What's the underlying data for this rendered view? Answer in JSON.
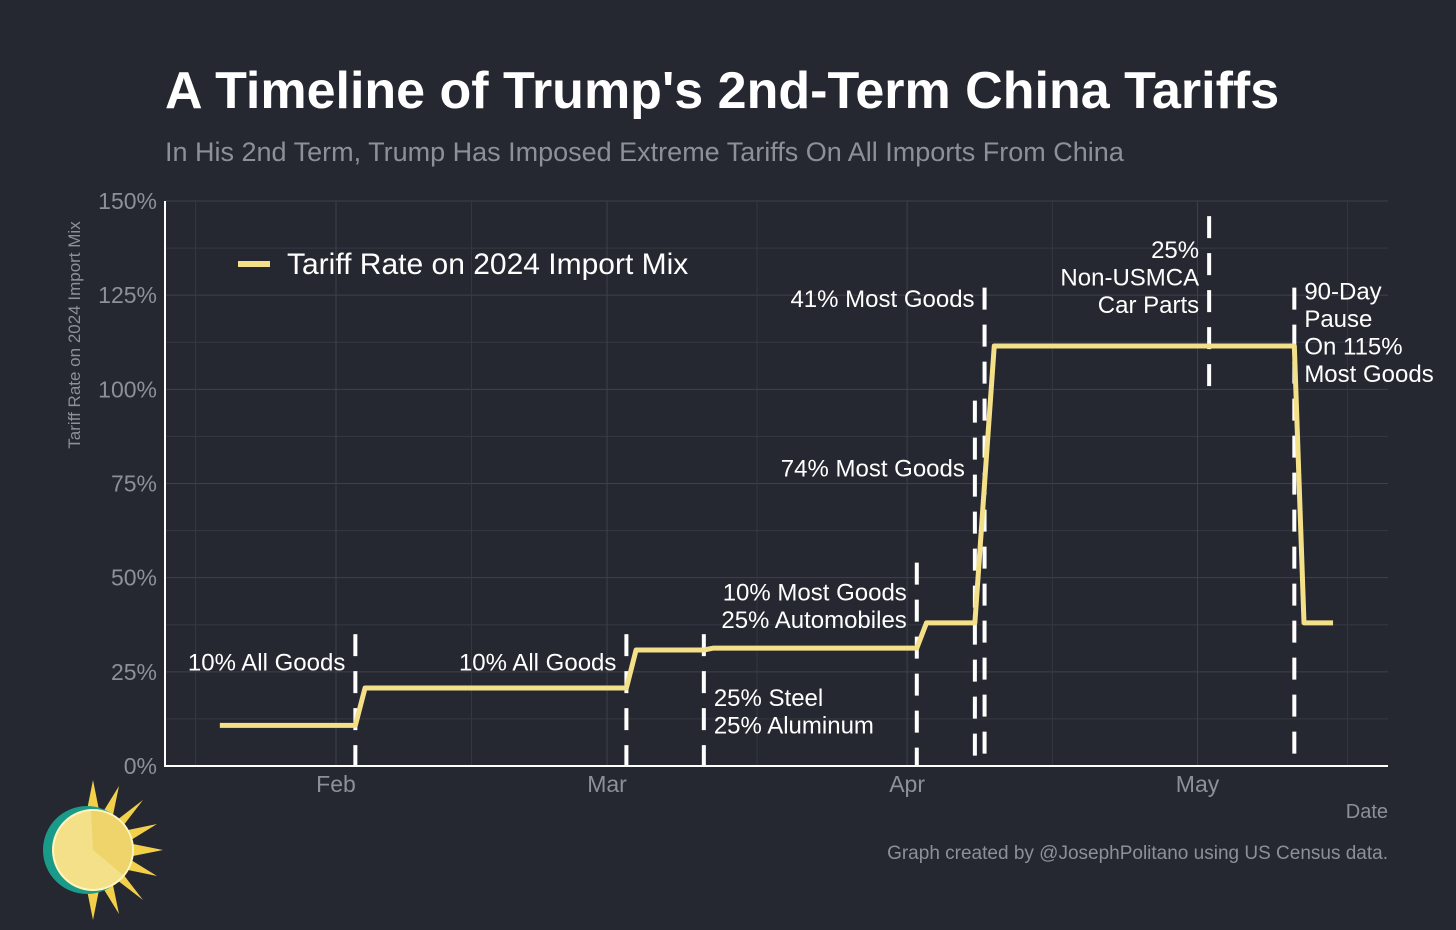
{
  "chart_data": {
    "type": "line",
    "title": "A Timeline of Trump's 2nd-Term China Tariffs",
    "subtitle": "In His 2nd Term, Trump Has Imposed Extreme Tariffs On All Imports From China",
    "xlabel": "Date",
    "ylabel": "Tariff Rate on 2024 Import Mix",
    "x_unit": "day of year 2025",
    "xlim": [
      14,
      145
    ],
    "ylim": [
      0,
      150
    ],
    "yticks": [
      0,
      25,
      50,
      75,
      100,
      125,
      150
    ],
    "ytick_labels": [
      "0%",
      "25%",
      "50%",
      "75%",
      "100%",
      "125%",
      "150%"
    ],
    "xticks": [
      32,
      60,
      91,
      121
    ],
    "xtick_labels": [
      "Feb",
      "Mar",
      "Apr",
      "May"
    ],
    "grid": true,
    "legend_position": "top-left",
    "series": [
      {
        "name": "Tariff Rate on 2024 Import Mix",
        "color": "#f5e08a",
        "x": [
          20,
          34,
          35,
          62,
          63,
          70,
          71,
          92,
          93,
          98,
          99,
          100,
          131,
          132,
          135
        ],
        "y": [
          10.8,
          10.8,
          20.7,
          20.7,
          30.8,
          30.8,
          31.3,
          31.3,
          38,
          38,
          75,
          111.5,
          111.5,
          38,
          38
        ]
      }
    ],
    "events": [
      {
        "x": 34,
        "top": 35,
        "bottom": 0,
        "label": [
          "10% All Goods"
        ]
      },
      {
        "x": 62,
        "top": 35,
        "bottom": 0,
        "label": [
          "10% All Goods"
        ]
      },
      {
        "x": 70,
        "top": 35,
        "bottom": 0,
        "label": [
          "25% Steel",
          "25% Aluminum"
        ]
      },
      {
        "x": 92,
        "top": 54,
        "bottom": 0,
        "label": [
          "10% Most Goods",
          "25% Automobiles"
        ]
      },
      {
        "x": 98,
        "top": 97,
        "bottom": 0,
        "label": [
          "74% Most Goods"
        ]
      },
      {
        "x": 99,
        "top": 127,
        "bottom": 0,
        "label": [
          "41% Most Goods"
        ]
      },
      {
        "x": 122.2,
        "top": 146,
        "bottom": 100,
        "label": [
          "25%",
          "Non-USMCA",
          "Car Parts"
        ]
      },
      {
        "x": 131,
        "top": 127,
        "bottom": 0,
        "label": [
          "90-Day",
          "Pause",
          "On 115%",
          "Most Goods"
        ]
      }
    ],
    "footer": "Graph created by @JosephPolitano using US Census data."
  }
}
